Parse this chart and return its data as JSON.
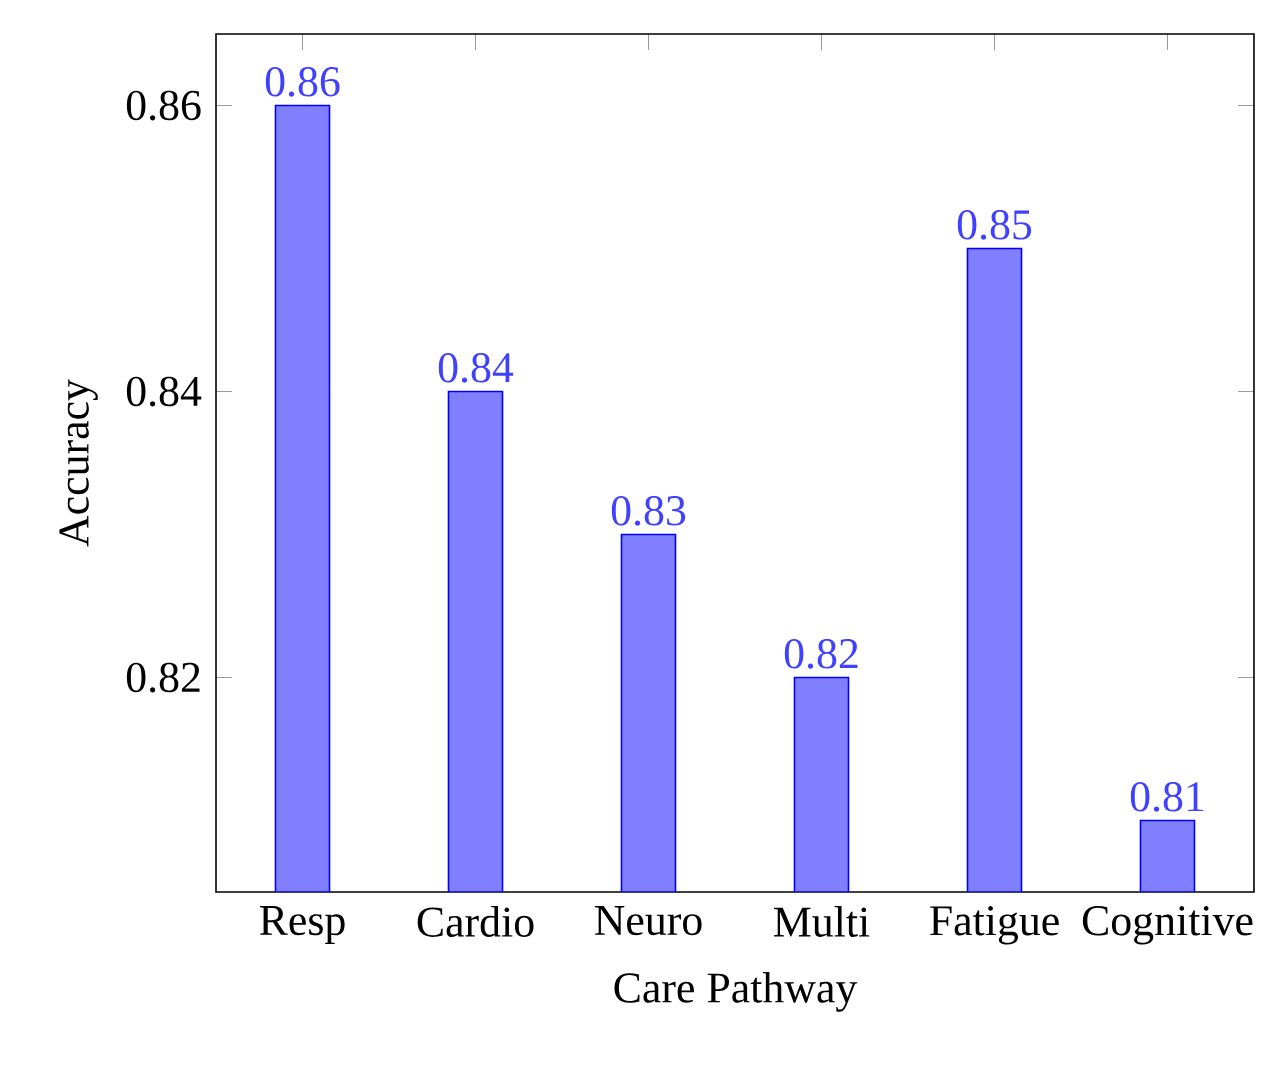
{
  "chart_data": {
    "type": "bar",
    "xlabel": "Care Pathway",
    "ylabel": "Accuracy",
    "categories": [
      "Resp",
      "Cardio",
      "Neuro",
      "Multi",
      "Fatigue",
      "Cognitive"
    ],
    "values": [
      0.86,
      0.84,
      0.83,
      0.82,
      0.85,
      0.81
    ],
    "value_labels": [
      "0.86",
      "0.84",
      "0.83",
      "0.82",
      "0.85",
      "0.81"
    ],
    "color": "#8080ff",
    "ylim": [
      0.805,
      0.865
    ],
    "yticks": [
      0.82,
      0.84,
      0.86
    ],
    "grid": false
  }
}
